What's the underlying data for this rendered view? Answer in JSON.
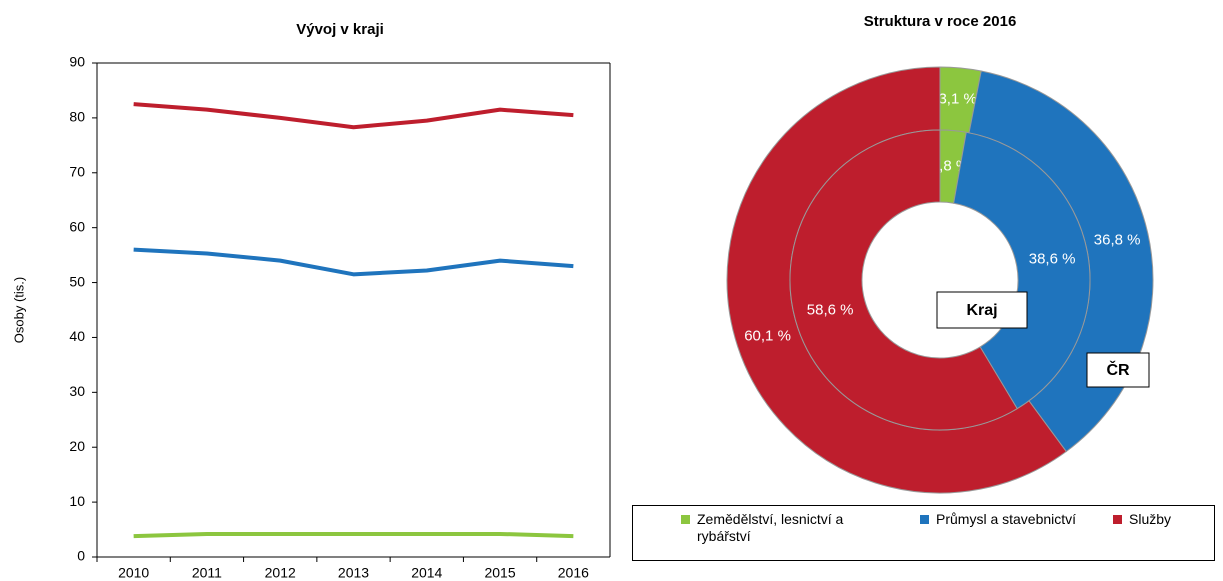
{
  "chart_data": [
    {
      "type": "line",
      "title": "Vývoj v kraji",
      "y_label": "Osoby (tis.)",
      "categories": [
        "2010",
        "2011",
        "2012",
        "2013",
        "2014",
        "2015",
        "2016"
      ],
      "series": [
        {
          "color": "#be1e2d",
          "values": [
            82.5,
            81.5,
            80,
            78.3,
            79.5,
            81.5,
            80.5
          ]
        },
        {
          "color": "#1f74bd",
          "values": [
            56,
            55.3,
            54,
            51.5,
            52.2,
            54,
            53
          ]
        },
        {
          "color": "#8cc63f",
          "values": [
            3.8,
            4.2,
            4.2,
            4.2,
            4.2,
            4.2,
            3.8
          ]
        }
      ],
      "ylim": [
        0,
        90
      ],
      "yticks": [
        0,
        10,
        20,
        30,
        40,
        50,
        60,
        70,
        80,
        90
      ],
      "grid": false
    },
    {
      "type": "donut",
      "title": "Struktura v roce 2016",
      "categories": [
        "Zemědělství, lesnictví a rybářství",
        "Průmysl a stavebnictví",
        "Služby"
      ],
      "colors": [
        "#8cc63f",
        "#1f74bd",
        "#be1e2d"
      ],
      "series": [
        {
          "name": "ČR",
          "values": [
            3.1,
            36.8,
            60.1
          ],
          "value_labels": [
            "3,1 %",
            "36,8 %",
            "60,1 %"
          ]
        },
        {
          "name": "Kraj",
          "values": [
            2.8,
            38.6,
            58.6
          ],
          "value_labels": [
            "2,8 %",
            "38,6 %",
            "58,6 %"
          ]
        }
      ],
      "legend": "bottom"
    }
  ]
}
